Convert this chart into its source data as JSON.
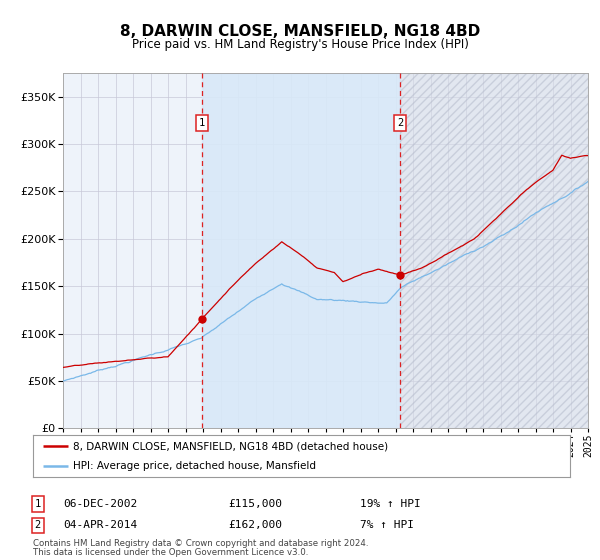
{
  "title": "8, DARWIN CLOSE, MANSFIELD, NG18 4BD",
  "subtitle": "Price paid vs. HM Land Registry's House Price Index (HPI)",
  "legend_line1": "8, DARWIN CLOSE, MANSFIELD, NG18 4BD (detached house)",
  "legend_line2": "HPI: Average price, detached house, Mansfield",
  "transaction1_date": "06-DEC-2002",
  "transaction1_price": 115000,
  "transaction1_label": "£115,000",
  "transaction1_pct": "19% ↑ HPI",
  "transaction2_date": "04-APR-2014",
  "transaction2_price": 162000,
  "transaction2_label": "£162,000",
  "transaction2_pct": "7% ↑ HPI",
  "footnote1": "Contains HM Land Registry data © Crown copyright and database right 2024.",
  "footnote2": "This data is licensed under the Open Government Licence v3.0.",
  "hpi_color": "#7ab8e8",
  "price_color": "#cc0000",
  "bg_color": "#ffffff",
  "plot_bg": "#eef3fa",
  "grid_color": "#c8c8d8",
  "shade_color": "#d8e8f8",
  "vline_color": "#dd2222",
  "hatch_color": "#c0c8d8",
  "ylim_max": 375000,
  "ylim_min": 0,
  "start_year": 1995,
  "end_year": 2025,
  "transaction1_year": 2002.92,
  "transaction2_year": 2014.28
}
